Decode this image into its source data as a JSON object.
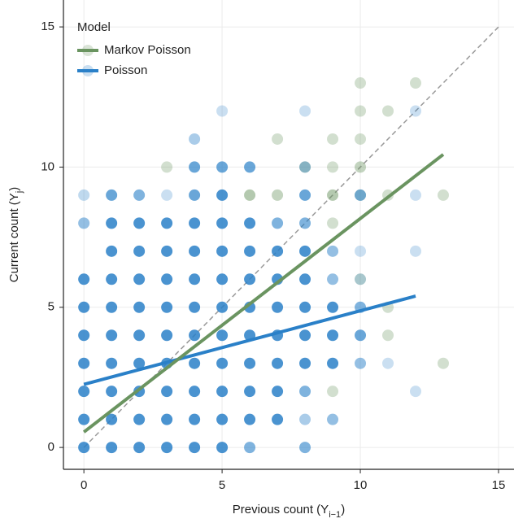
{
  "chart_data": {
    "type": "scatter",
    "x_label": [
      "Previous count (Y",
      "i−1",
      ")"
    ],
    "y_label": [
      "Current count (Y",
      "j",
      ")"
    ],
    "legend_title": "Model",
    "legend_position": "top-left",
    "grid": true,
    "identity_line": true,
    "xlim": [
      -0.74,
      15.56
    ],
    "ylim": [
      -0.78,
      15.96
    ],
    "xticks": [
      0,
      5,
      10,
      15
    ],
    "yticks": [
      0,
      5,
      10,
      15
    ],
    "series": [
      {
        "name": "Markov Poisson",
        "color": "#6a9460",
        "x": [
          9,
          13,
          11,
          11,
          10,
          9,
          6,
          7,
          9,
          10,
          11,
          13,
          3,
          8,
          9,
          10,
          7,
          9,
          10,
          10,
          11,
          10,
          12
        ],
        "y": [
          2,
          3,
          4,
          5,
          6,
          8,
          9,
          9,
          9,
          9,
          9,
          9,
          10,
          10,
          10,
          10,
          11,
          11,
          11,
          12,
          12,
          13,
          13
        ],
        "opacity": [
          0.3,
          0.3,
          0.3,
          0.3,
          0.3,
          0.3,
          0.5,
          0.4,
          0.5,
          0.3,
          0.3,
          0.3,
          0.3,
          0.4,
          0.3,
          0.4,
          0.3,
          0.3,
          0.3,
          0.3,
          0.3,
          0.3,
          0.3
        ],
        "fit_x": [
          0,
          13
        ],
        "fit_y": [
          0.55,
          10.45
        ]
      },
      {
        "name": "Poisson",
        "color": "#2a80c8",
        "x": [
          0,
          1,
          2,
          3,
          4,
          5,
          6,
          8,
          0,
          1,
          2,
          3,
          4,
          5,
          6,
          7,
          8,
          9,
          0,
          1,
          2,
          3,
          4,
          5,
          6,
          7,
          8,
          12,
          0,
          1,
          2,
          3,
          4,
          5,
          6,
          7,
          8,
          9,
          10,
          11,
          0,
          1,
          2,
          3,
          4,
          5,
          6,
          7,
          8,
          9,
          10,
          0,
          1,
          2,
          3,
          4,
          5,
          6,
          7,
          8,
          9,
          10,
          0,
          1,
          2,
          3,
          4,
          5,
          6,
          7,
          8,
          9,
          10,
          1,
          2,
          3,
          4,
          5,
          6,
          7,
          8,
          9,
          10,
          12,
          0,
          1,
          2,
          3,
          4,
          5,
          6,
          7,
          8,
          0,
          1,
          2,
          3,
          4,
          5,
          8,
          10,
          12,
          4,
          5,
          6,
          8,
          4,
          5,
          8,
          12
        ],
        "y": [
          0,
          0,
          0,
          0,
          0,
          0,
          0,
          0,
          1,
          1,
          1,
          1,
          1,
          1,
          1,
          1,
          1,
          1,
          2,
          2,
          2,
          2,
          2,
          2,
          2,
          2,
          2,
          2,
          3,
          3,
          3,
          3,
          3,
          3,
          3,
          3,
          3,
          3,
          3,
          3,
          4,
          4,
          4,
          4,
          4,
          4,
          4,
          4,
          4,
          4,
          4,
          5,
          5,
          5,
          5,
          5,
          5,
          5,
          5,
          5,
          5,
          5,
          6,
          6,
          6,
          6,
          6,
          6,
          6,
          6,
          6,
          6,
          6,
          7,
          7,
          7,
          7,
          7,
          7,
          7,
          7,
          7,
          7,
          7,
          8,
          8,
          8,
          8,
          8,
          8,
          8,
          8,
          8,
          9,
          9,
          9,
          9,
          9,
          9,
          9,
          9,
          9,
          10,
          10,
          10,
          10,
          11,
          12,
          12,
          12
        ],
        "opacity": [
          0.85,
          0.85,
          0.85,
          0.85,
          0.85,
          0.85,
          0.6,
          0.6,
          0.85,
          0.85,
          0.85,
          0.85,
          0.85,
          0.85,
          0.85,
          0.85,
          0.4,
          0.5,
          0.85,
          0.85,
          0.85,
          0.85,
          0.85,
          0.85,
          0.85,
          0.85,
          0.6,
          0.25,
          0.85,
          0.85,
          0.85,
          0.85,
          0.85,
          0.85,
          0.85,
          0.85,
          0.85,
          0.85,
          0.5,
          0.25,
          0.85,
          0.85,
          0.85,
          0.85,
          0.85,
          0.85,
          0.85,
          0.85,
          0.85,
          0.85,
          0.7,
          0.85,
          0.85,
          0.85,
          0.85,
          0.85,
          0.85,
          0.85,
          0.85,
          0.85,
          0.85,
          0.6,
          0.85,
          0.85,
          0.85,
          0.85,
          0.85,
          0.85,
          0.85,
          0.85,
          0.85,
          0.5,
          0.25,
          0.85,
          0.85,
          0.85,
          0.85,
          0.85,
          0.85,
          0.85,
          0.85,
          0.5,
          0.25,
          0.25,
          0.5,
          0.85,
          0.85,
          0.85,
          0.85,
          0.85,
          0.85,
          0.6,
          0.6,
          0.3,
          0.7,
          0.6,
          0.25,
          0.7,
          0.85,
          0.7,
          0.6,
          0.25,
          0.7,
          0.7,
          0.7,
          0.4,
          0.4,
          0.25,
          0.25,
          0.25
        ],
        "fit_x": [
          0,
          12
        ],
        "fit_y": [
          2.25,
          5.4
        ]
      }
    ]
  }
}
